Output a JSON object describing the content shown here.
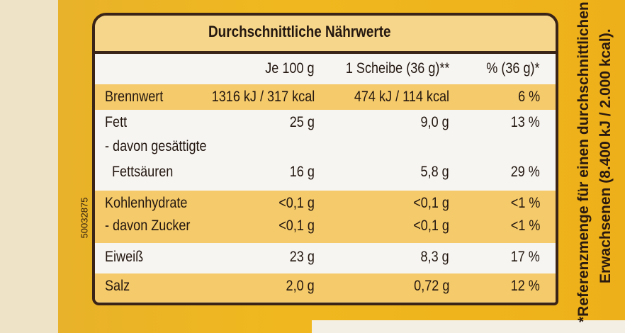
{
  "title": "Durchschnittliche Nährwerte",
  "columns": [
    "Je 100 g",
    "1 Scheibe (36 g)**",
    "% (36 g)*"
  ],
  "rows": [
    {
      "label": "Brennwert",
      "per100": "1316 kJ / 317 kcal",
      "slice": "474 kJ / 114 kcal",
      "pct": "6 %"
    },
    {
      "label": "Fett",
      "per100": "25 g",
      "slice": "9,0 g",
      "pct": "13 %"
    },
    {
      "label": "- davon gesättigte",
      "label2": "Fettsäuren",
      "per100": "16 g",
      "slice": "5,8 g",
      "pct": "29 %"
    },
    {
      "label": "Kohlenhydrate",
      "per100": "<0,1 g",
      "slice": "<0,1 g",
      "pct": "<1 %"
    },
    {
      "label": "- davon Zucker",
      "per100": "<0,1 g",
      "slice": "<0,1 g",
      "pct": "<1 %"
    },
    {
      "label": "Eiweiß",
      "per100": "23 g",
      "slice": "8,3 g",
      "pct": "17 %"
    },
    {
      "label": "Salz",
      "per100": "2,0 g",
      "slice": "0,72 g",
      "pct": "12 %"
    }
  ],
  "code": "50032875",
  "footnote": [
    "*Referenzmenge für einen durchschnittlichen",
    "Erwachsenen (8.400 kJ / 2.000 kcal)."
  ],
  "colors": {
    "package": "#f0b81e",
    "band_yellow": "#f5ca6a",
    "band_white": "#f7f5f2",
    "border": "#3a2418"
  }
}
